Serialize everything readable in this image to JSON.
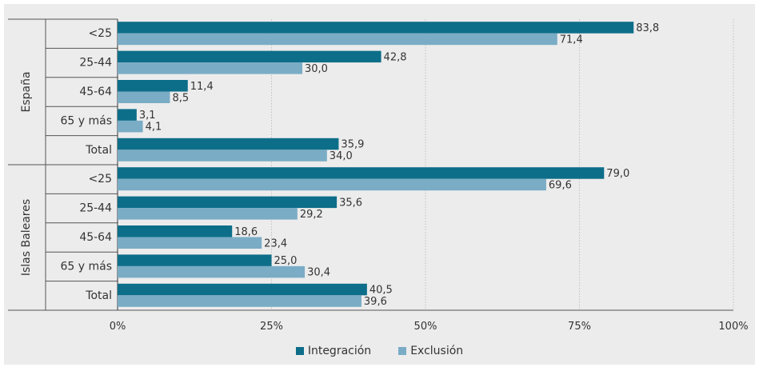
{
  "chart_data": {
    "type": "bar",
    "orientation": "horizontal",
    "groups": [
      {
        "name": "España",
        "categories": [
          "<25",
          "25-44",
          "45-64",
          "65 y más",
          "Total"
        ]
      },
      {
        "name": "Islas Baleares",
        "categories": [
          "<25",
          "25-44",
          "45-64",
          "65 y más",
          "Total"
        ]
      }
    ],
    "series": [
      {
        "name": "Integración",
        "color": "#0d6e89",
        "values": [
          83.8,
          42.8,
          11.4,
          3.1,
          35.9,
          79.0,
          35.6,
          18.6,
          25.0,
          40.5
        ],
        "labels": [
          "83,8",
          "42,8",
          "11,4",
          "3,1",
          "35,9",
          "79,0",
          "35,6",
          "18,6",
          "25,0",
          "40,5"
        ]
      },
      {
        "name": "Exclusión",
        "color": "#7aacc5",
        "values": [
          71.4,
          30.0,
          8.5,
          4.1,
          34.0,
          69.6,
          29.2,
          23.4,
          30.4,
          39.6
        ],
        "labels": [
          "71,4",
          "30,0",
          "8,5",
          "4,1",
          "34,0",
          "69,6",
          "29,2",
          "23,4",
          "30,4",
          "39,6"
        ]
      }
    ],
    "xlim": [
      0,
      100
    ],
    "xticks": [
      0,
      25,
      50,
      75,
      100
    ],
    "xtick_labels": [
      "0%",
      "25%",
      "50%",
      "75%",
      "100%"
    ],
    "grid": true,
    "legend_position": "bottom"
  }
}
